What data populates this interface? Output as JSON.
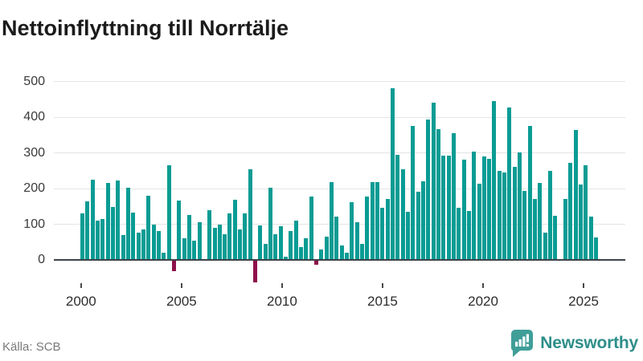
{
  "title": "Nettoinflyttning till Norrtälje",
  "footer": {
    "source_label": "Källa: SCB",
    "brand_name": "Newsworthy"
  },
  "chart_data": {
    "type": "bar",
    "title": "Nettoinflyttning till Norrtälje",
    "frequency": "quarterly",
    "period_start": "2000 Q1",
    "period_end": "2025 Q2",
    "by_year": [
      {
        "year": 2000,
        "q": [
          130,
          165,
          225,
          110
        ]
      },
      {
        "year": 2001,
        "q": [
          115,
          215,
          148,
          222
        ]
      },
      {
        "year": 2002,
        "q": [
          70,
          202,
          133,
          76
        ]
      },
      {
        "year": 2003,
        "q": [
          86,
          180,
          99,
          81
        ]
      },
      {
        "year": 2004,
        "q": [
          20,
          265,
          -28,
          167
        ]
      },
      {
        "year": 2005,
        "q": [
          60,
          125,
          55,
          105
        ]
      },
      {
        "year": 2006,
        "q": [
          0,
          140,
          90,
          100
        ]
      },
      {
        "year": 2007,
        "q": [
          73,
          131,
          169,
          86
        ]
      },
      {
        "year": 2008,
        "q": [
          130,
          253,
          -60,
          97
        ]
      },
      {
        "year": 2009,
        "q": [
          44,
          203,
          71,
          94
        ]
      },
      {
        "year": 2010,
        "q": [
          10,
          80,
          110,
          37
        ]
      },
      {
        "year": 2011,
        "q": [
          61,
          178,
          -10,
          29
        ]
      },
      {
        "year": 2012,
        "q": [
          65,
          219,
          122,
          41
        ]
      },
      {
        "year": 2013,
        "q": [
          20,
          161,
          106,
          45
        ]
      },
      {
        "year": 2014,
        "q": [
          178,
          217,
          217,
          147
        ]
      },
      {
        "year": 2015,
        "q": [
          170,
          480,
          295,
          253
        ]
      },
      {
        "year": 2016,
        "q": [
          134,
          376,
          191,
          221
        ]
      },
      {
        "year": 2017,
        "q": [
          394,
          440,
          367,
          292
        ]
      },
      {
        "year": 2018,
        "q": [
          292,
          355,
          146,
          280
        ]
      },
      {
        "year": 2019,
        "q": [
          137,
          304,
          214,
          291
        ]
      },
      {
        "year": 2020,
        "q": [
          283,
          446,
          249,
          245
        ]
      },
      {
        "year": 2021,
        "q": [
          428,
          260,
          302,
          193
        ]
      },
      {
        "year": 2022,
        "q": [
          376,
          170,
          216,
          76
        ]
      },
      {
        "year": 2023,
        "q": [
          249,
          123,
          0,
          170
        ]
      },
      {
        "year": 2024,
        "q": [
          271,
          364,
          212,
          265
        ]
      },
      {
        "year": 2025,
        "q": [
          122,
          62
        ]
      }
    ],
    "x_tick_labels": [
      "2000",
      "2005",
      "2010",
      "2015",
      "2020",
      "2025"
    ],
    "y_tick_labels": [
      "0",
      "100",
      "200",
      "300",
      "400",
      "500"
    ],
    "ylim": [
      -75,
      500
    ],
    "grid": true,
    "legend": "none",
    "colors": {
      "bar_positive": "#0a9c94",
      "bar_negative": "#8e104b",
      "axis": "#3d4449",
      "gridline": "#e4e4e4"
    }
  }
}
